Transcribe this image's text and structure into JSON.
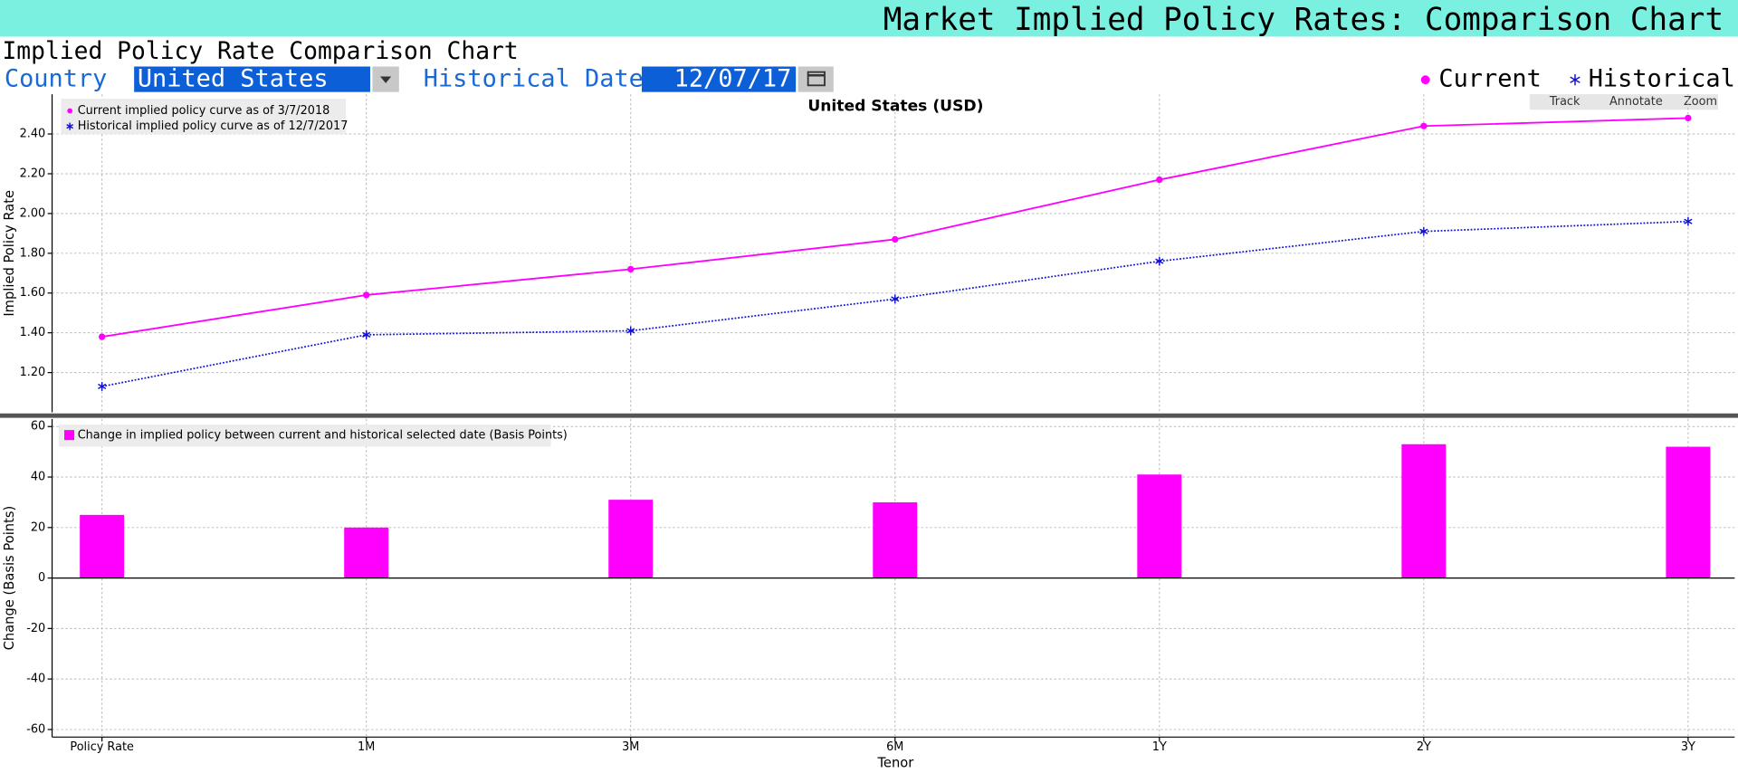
{
  "header": {
    "title": "Market Implied Policy Rates: Comparison Chart",
    "subtitle": "Implied Policy Rate Comparison Chart"
  },
  "controls": {
    "country_label": "Country",
    "country": "United States",
    "date_label": "Historical Date",
    "date": "12/07/17"
  },
  "toolbar": [
    "Track",
    "Annotate",
    "Zoom"
  ],
  "chart_data": [
    {
      "type": "line",
      "title": "United States (USD)",
      "y_label": "Implied Policy Rate",
      "series": [
        {
          "name": "Current",
          "description": "Current implied policy curve as of 3/7/2018",
          "color": "#ff00ff",
          "marker": "circle",
          "dash": "solid",
          "values": [
            1.38,
            1.59,
            1.72,
            1.87,
            2.17,
            2.44,
            2.48
          ]
        },
        {
          "name": "Historical",
          "description": "Historical implied policy curve as of 12/7/2017",
          "color": "#1010d0",
          "marker": "asterisk",
          "dash": "dotted",
          "values": [
            1.13,
            1.39,
            1.41,
            1.57,
            1.76,
            1.91,
            1.96
          ]
        }
      ],
      "ylim": [
        1.0,
        2.6
      ],
      "yticks": [
        {
          "value": 1.2,
          "label": "1.20"
        },
        {
          "value": 1.4,
          "label": "1.40"
        },
        {
          "value": 1.6,
          "label": "1.60"
        },
        {
          "value": 1.8,
          "label": "1.80"
        },
        {
          "value": 2.0,
          "label": "2.00"
        },
        {
          "value": 2.2,
          "label": "2.20"
        },
        {
          "value": 2.4,
          "label": "2.40"
        }
      ],
      "grid": true
    },
    {
      "type": "bar",
      "legend_label": "Change in implied policy between current and historical selected date (Basis Points)",
      "y_label": "Change (Basis Points)",
      "x_label": "Tenor",
      "color": "#ff00ff",
      "categories": [
        "Policy Rate",
        "1M",
        "3M",
        "6M",
        "1Y",
        "2Y",
        "3Y"
      ],
      "values": [
        25,
        20,
        31,
        30,
        41,
        53,
        52
      ],
      "ylim": [
        -63,
        63
      ],
      "yticks": [
        -60,
        -40,
        -20,
        0,
        20,
        40,
        60
      ],
      "grid": true
    }
  ]
}
